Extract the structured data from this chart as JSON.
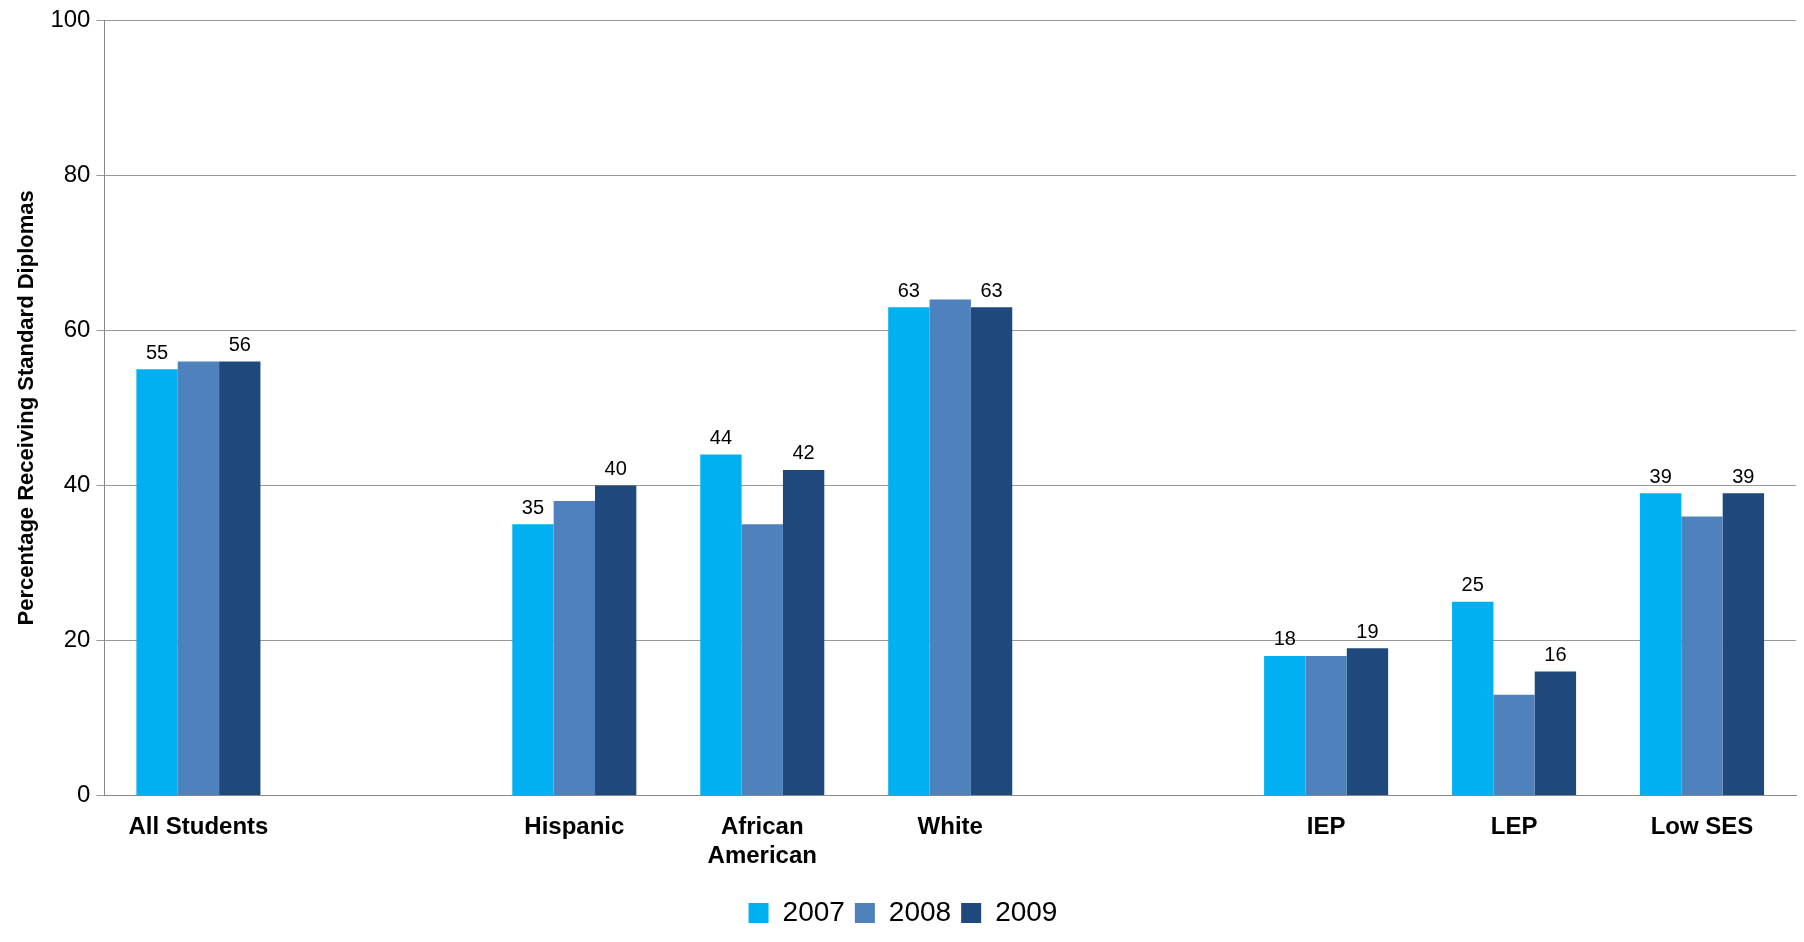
{
  "chart_data": {
    "type": "bar",
    "ylabel": "Percentage Receiving Standard Diplomas",
    "categories": [
      "All Students",
      null,
      "Hispanic",
      "African American",
      "White",
      null,
      "IEP",
      "LEP",
      "Low SES"
    ],
    "series": [
      {
        "name": "2007",
        "color": "#00b0f0",
        "values": [
          55,
          null,
          35,
          44,
          63,
          null,
          18,
          25,
          39
        ],
        "value_labels": [
          "55",
          null,
          "35",
          "44",
          "63",
          null,
          "18",
          "25",
          "39"
        ]
      },
      {
        "name": "2008",
        "color": "#4f81bd",
        "values": [
          56,
          null,
          38,
          35,
          64,
          null,
          18,
          13,
          36
        ]
      },
      {
        "name": "2009",
        "color": "#1f497d",
        "values": [
          56,
          null,
          40,
          42,
          63,
          null,
          19,
          16,
          39
        ],
        "value_labels": [
          "56",
          null,
          "40",
          "42",
          "63",
          null,
          "19",
          "16",
          "39"
        ]
      }
    ],
    "ylim": [
      0,
      100
    ],
    "yticks": [
      0,
      20,
      40,
      60,
      80,
      100
    ],
    "grid": "y",
    "legend": "bottom"
  }
}
